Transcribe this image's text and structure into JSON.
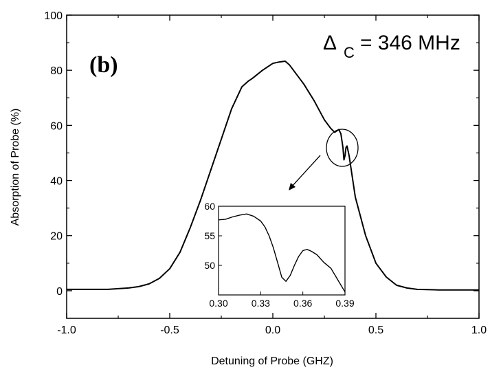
{
  "chart_data": {
    "type": "line",
    "title": "",
    "panel_label": "(b)",
    "annotation": {
      "symbol": "Δ",
      "subscript": "C",
      "text": "= 346 MHz"
    },
    "xlabel": "Detuning of Probe (GHZ)",
    "ylabel": "Absorption of Probe (%)",
    "xlim": [
      -1.0,
      1.0
    ],
    "ylim": [
      -10,
      100
    ],
    "xticks": [
      -1.0,
      -0.5,
      0.0,
      0.5,
      1.0
    ],
    "xtick_labels": [
      "-1.0",
      "-0.5",
      "0.0",
      "0.5",
      "1.0"
    ],
    "yticks": [
      0,
      20,
      40,
      60,
      80,
      100
    ],
    "ytick_labels": [
      "0",
      "20",
      "40",
      "60",
      "80",
      "100"
    ],
    "series": [
      {
        "x": [
          -1.0,
          -0.9,
          -0.8,
          -0.7,
          -0.65,
          -0.6,
          -0.55,
          -0.5,
          -0.45,
          -0.4,
          -0.35,
          -0.3,
          -0.25,
          -0.2,
          -0.15,
          -0.12,
          -0.1,
          -0.05,
          0.0,
          0.03,
          0.06,
          0.08,
          0.1,
          0.15,
          0.2,
          0.25,
          0.28,
          0.3,
          0.32,
          0.33,
          0.34,
          0.345,
          0.35,
          0.355,
          0.36,
          0.37,
          0.38,
          0.4,
          0.45,
          0.5,
          0.55,
          0.6,
          0.65,
          0.7,
          0.8,
          0.9,
          1.0
        ],
        "y": [
          0.5,
          0.5,
          0.5,
          1,
          1.5,
          2.5,
          4.5,
          8,
          14,
          23,
          33,
          44,
          55,
          66,
          74,
          76,
          77,
          80,
          82.5,
          83,
          83.3,
          82,
          80,
          75,
          69,
          62,
          59,
          57.5,
          58.5,
          57,
          52,
          47.5,
          49,
          52,
          52.5,
          49,
          44,
          34,
          20,
          10,
          5,
          2,
          1,
          0.5,
          0.3,
          0.3,
          0.3
        ]
      }
    ],
    "inset": {
      "xlim": [
        0.3,
        0.39
      ],
      "ylim": [
        45,
        60
      ],
      "xticks": [
        0.3,
        0.33,
        0.36,
        0.39
      ],
      "xtick_labels": [
        "0.30",
        "0.33",
        "0.36",
        "0.39"
      ],
      "yticks": [
        50,
        55,
        60
      ],
      "ytick_labels": [
        "50",
        "55",
        "60"
      ],
      "x": [
        0.3,
        0.305,
        0.31,
        0.315,
        0.32,
        0.325,
        0.33,
        0.333,
        0.336,
        0.339,
        0.342,
        0.345,
        0.348,
        0.351,
        0.354,
        0.357,
        0.36,
        0.363,
        0.366,
        0.37,
        0.375,
        0.38,
        0.385,
        0.39
      ],
      "y": [
        57.7,
        57.8,
        58.2,
        58.5,
        58.7,
        58.3,
        57.5,
        56.5,
        55.0,
        53.0,
        50.5,
        48.0,
        47.3,
        48.3,
        50.0,
        51.5,
        52.5,
        52.7,
        52.4,
        51.8,
        50.5,
        49.5,
        47.5,
        45.5
      ]
    }
  }
}
